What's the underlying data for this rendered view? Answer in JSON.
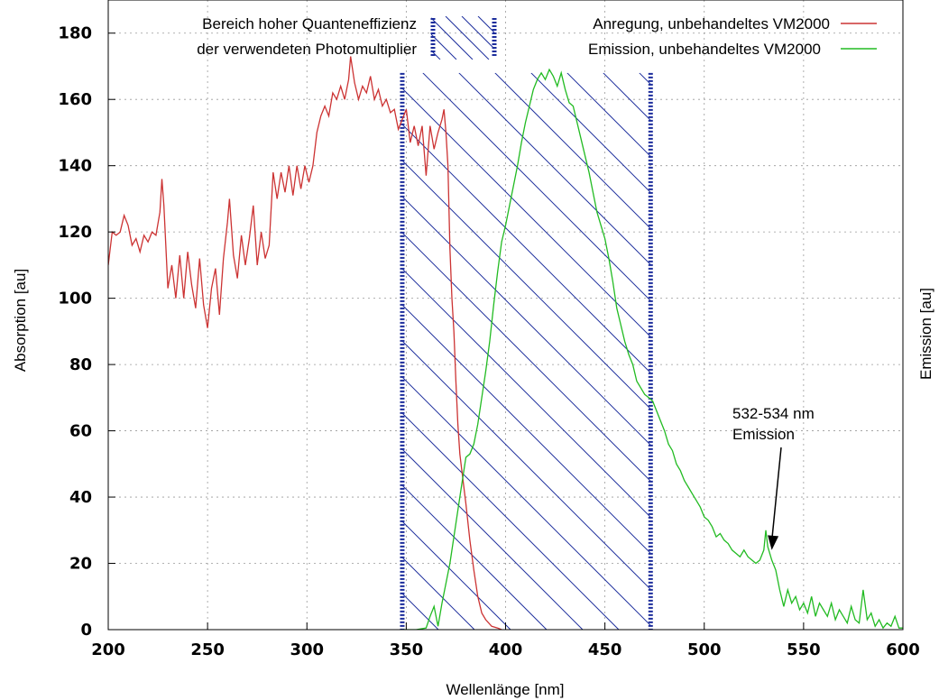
{
  "chart_data": {
    "type": "line",
    "xlabel": "Wellenlänge [nm]",
    "ylabel": "Absorption [au]",
    "y2label": "Emission [au]",
    "xlim": [
      200,
      600
    ],
    "ylim": [
      0,
      190
    ],
    "xticks": [
      200,
      250,
      300,
      350,
      400,
      450,
      500,
      550,
      600
    ],
    "yticks": [
      0,
      20,
      40,
      60,
      80,
      100,
      120,
      140,
      160,
      180
    ],
    "grid": true,
    "legend_position": "top",
    "band": {
      "label_line1": "Bereich hoher Quanteneffizienz",
      "label_line2": "der verwendeten Photomultiplier",
      "x_range": [
        348,
        473
      ],
      "y_top": 168,
      "color": "#1c2d9c",
      "hatch": "diagonal"
    },
    "series": [
      {
        "name": "Anregung, unbehandeltes VM2000",
        "color": "#cc3333",
        "points": [
          [
            200,
            110
          ],
          [
            202,
            120
          ],
          [
            204,
            119
          ],
          [
            206,
            120
          ],
          [
            208,
            125
          ],
          [
            210,
            122
          ],
          [
            212,
            116
          ],
          [
            214,
            118
          ],
          [
            216,
            114
          ],
          [
            218,
            119
          ],
          [
            220,
            117
          ],
          [
            222,
            120
          ],
          [
            224,
            119
          ],
          [
            226,
            126
          ],
          [
            227,
            136
          ],
          [
            228,
            128
          ],
          [
            230,
            103
          ],
          [
            232,
            110
          ],
          [
            234,
            100
          ],
          [
            236,
            113
          ],
          [
            238,
            100
          ],
          [
            240,
            114
          ],
          [
            242,
            104
          ],
          [
            244,
            97
          ],
          [
            246,
            112
          ],
          [
            248,
            98
          ],
          [
            250,
            91
          ],
          [
            252,
            103
          ],
          [
            254,
            109
          ],
          [
            256,
            95
          ],
          [
            258,
            112
          ],
          [
            260,
            123
          ],
          [
            261,
            130
          ],
          [
            263,
            113
          ],
          [
            265,
            106
          ],
          [
            267,
            119
          ],
          [
            269,
            110
          ],
          [
            271,
            118
          ],
          [
            273,
            128
          ],
          [
            275,
            110
          ],
          [
            277,
            120
          ],
          [
            279,
            112
          ],
          [
            281,
            116
          ],
          [
            283,
            138
          ],
          [
            285,
            130
          ],
          [
            287,
            138
          ],
          [
            289,
            132
          ],
          [
            291,
            140
          ],
          [
            293,
            131
          ],
          [
            295,
            140
          ],
          [
            297,
            133
          ],
          [
            299,
            140
          ],
          [
            301,
            135
          ],
          [
            303,
            140
          ],
          [
            305,
            150
          ],
          [
            307,
            155
          ],
          [
            309,
            158
          ],
          [
            311,
            155
          ],
          [
            313,
            162
          ],
          [
            315,
            160
          ],
          [
            317,
            164
          ],
          [
            319,
            160
          ],
          [
            321,
            166
          ],
          [
            322,
            173
          ],
          [
            324,
            165
          ],
          [
            326,
            160
          ],
          [
            328,
            164
          ],
          [
            330,
            162
          ],
          [
            332,
            167
          ],
          [
            334,
            160
          ],
          [
            336,
            163
          ],
          [
            338,
            158
          ],
          [
            340,
            160
          ],
          [
            342,
            156
          ],
          [
            344,
            157
          ],
          [
            346,
            151
          ],
          [
            348,
            154
          ],
          [
            350,
            157
          ],
          [
            352,
            147
          ],
          [
            354,
            152
          ],
          [
            356,
            146
          ],
          [
            358,
            152
          ],
          [
            360,
            137
          ],
          [
            362,
            152
          ],
          [
            364,
            145
          ],
          [
            366,
            150
          ],
          [
            368,
            154
          ],
          [
            369,
            157
          ],
          [
            370,
            150
          ],
          [
            371,
            140
          ],
          [
            372,
            115
          ],
          [
            373,
            100
          ],
          [
            374,
            90
          ],
          [
            375,
            75
          ],
          [
            376,
            62
          ],
          [
            377,
            53
          ],
          [
            378,
            48
          ],
          [
            380,
            38
          ],
          [
            382,
            27
          ],
          [
            384,
            18
          ],
          [
            386,
            10
          ],
          [
            388,
            5
          ],
          [
            390,
            3
          ],
          [
            393,
            1
          ],
          [
            396,
            0.5
          ],
          [
            398,
            0
          ]
        ]
      },
      {
        "name": "Emission,  unbehandeltes VM2000",
        "color": "#22bb22",
        "points": [
          [
            348,
            0
          ],
          [
            355,
            0
          ],
          [
            360,
            0.5
          ],
          [
            362,
            4
          ],
          [
            364,
            7
          ],
          [
            366,
            1
          ],
          [
            368,
            8
          ],
          [
            370,
            14
          ],
          [
            372,
            20
          ],
          [
            374,
            28
          ],
          [
            376,
            36
          ],
          [
            378,
            44
          ],
          [
            380,
            52
          ],
          [
            382,
            53
          ],
          [
            384,
            56
          ],
          [
            386,
            62
          ],
          [
            388,
            70
          ],
          [
            390,
            78
          ],
          [
            392,
            87
          ],
          [
            394,
            98
          ],
          [
            396,
            108
          ],
          [
            398,
            117
          ],
          [
            400,
            122
          ],
          [
            402,
            128
          ],
          [
            404,
            134
          ],
          [
            406,
            140
          ],
          [
            408,
            147
          ],
          [
            410,
            153
          ],
          [
            412,
            158
          ],
          [
            414,
            163
          ],
          [
            416,
            166
          ],
          [
            418,
            168
          ],
          [
            420,
            166
          ],
          [
            422,
            169
          ],
          [
            424,
            167
          ],
          [
            426,
            164
          ],
          [
            428,
            168
          ],
          [
            430,
            163
          ],
          [
            432,
            159
          ],
          [
            434,
            158
          ],
          [
            436,
            153
          ],
          [
            438,
            148
          ],
          [
            440,
            143
          ],
          [
            442,
            138
          ],
          [
            444,
            132
          ],
          [
            446,
            126
          ],
          [
            448,
            122
          ],
          [
            450,
            118
          ],
          [
            452,
            112
          ],
          [
            454,
            105
          ],
          [
            456,
            97
          ],
          [
            458,
            92
          ],
          [
            460,
            87
          ],
          [
            462,
            83
          ],
          [
            464,
            80
          ],
          [
            466,
            75
          ],
          [
            468,
            73
          ],
          [
            470,
            71
          ],
          [
            472,
            70
          ],
          [
            474,
            69
          ],
          [
            476,
            66
          ],
          [
            478,
            63
          ],
          [
            480,
            60
          ],
          [
            482,
            56
          ],
          [
            484,
            54
          ],
          [
            486,
            50
          ],
          [
            488,
            48
          ],
          [
            490,
            45
          ],
          [
            492,
            43
          ],
          [
            494,
            41
          ],
          [
            496,
            39
          ],
          [
            498,
            37
          ],
          [
            500,
            34
          ],
          [
            502,
            33
          ],
          [
            504,
            31
          ],
          [
            506,
            28
          ],
          [
            508,
            29
          ],
          [
            510,
            27
          ],
          [
            512,
            26
          ],
          [
            514,
            24
          ],
          [
            516,
            23
          ],
          [
            518,
            22
          ],
          [
            520,
            24
          ],
          [
            522,
            22
          ],
          [
            524,
            21
          ],
          [
            526,
            20
          ],
          [
            528,
            21
          ],
          [
            530,
            24
          ],
          [
            531,
            30
          ],
          [
            532,
            25
          ],
          [
            534,
            21
          ],
          [
            536,
            18
          ],
          [
            538,
            12
          ],
          [
            540,
            7
          ],
          [
            542,
            12
          ],
          [
            544,
            8
          ],
          [
            546,
            10
          ],
          [
            548,
            6
          ],
          [
            550,
            8
          ],
          [
            552,
            5
          ],
          [
            554,
            10
          ],
          [
            556,
            4
          ],
          [
            558,
            8
          ],
          [
            560,
            6
          ],
          [
            562,
            4
          ],
          [
            564,
            8
          ],
          [
            566,
            3
          ],
          [
            568,
            6
          ],
          [
            570,
            4
          ],
          [
            572,
            2
          ],
          [
            574,
            7
          ],
          [
            576,
            3
          ],
          [
            578,
            2
          ],
          [
            580,
            12
          ],
          [
            582,
            3
          ],
          [
            584,
            5
          ],
          [
            586,
            1
          ],
          [
            588,
            3
          ],
          [
            590,
            0.5
          ],
          [
            592,
            2
          ],
          [
            594,
            1
          ],
          [
            596,
            4
          ],
          [
            598,
            0.5
          ],
          [
            600,
            0.5
          ]
        ]
      }
    ],
    "annotation": {
      "line1": "532-534 nm",
      "line2": "Emission",
      "target": [
        534,
        24
      ]
    }
  }
}
